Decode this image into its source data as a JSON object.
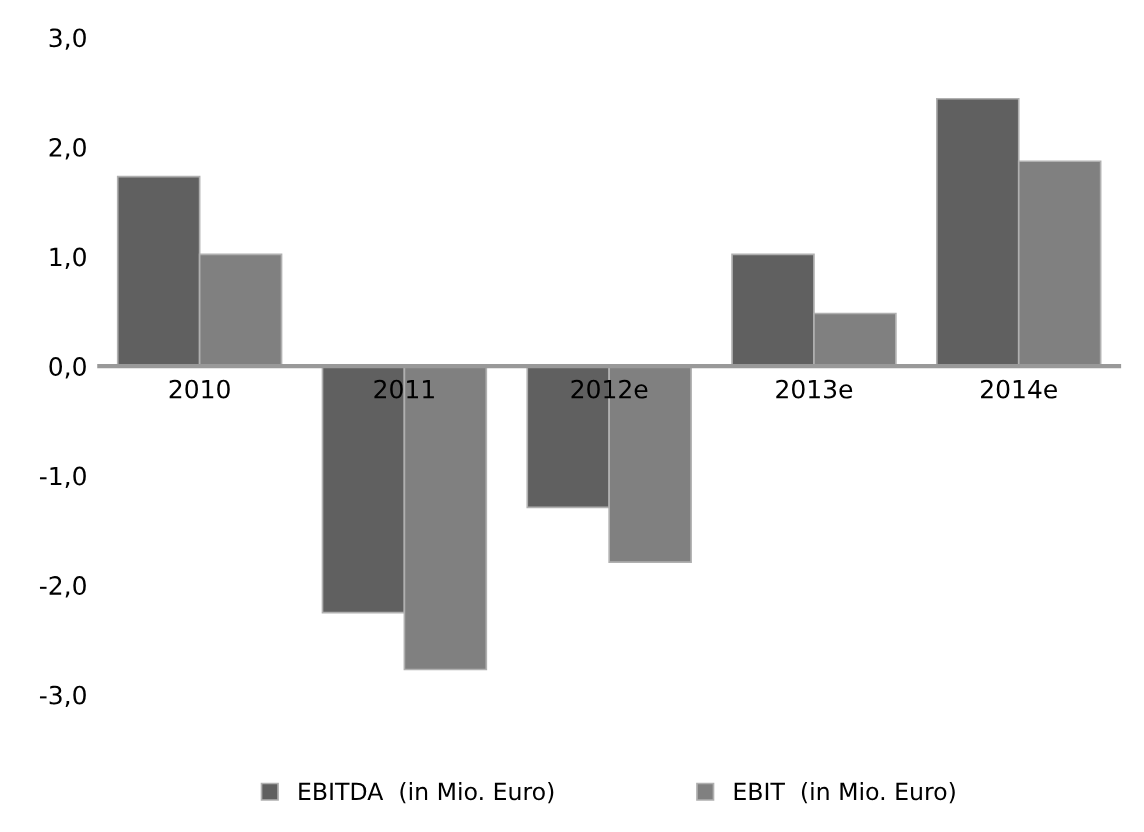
{
  "chart_data": {
    "type": "bar",
    "categories": [
      "2010",
      "2011",
      "2012e",
      "2013e",
      "2014e"
    ],
    "series": [
      {
        "name": "EBITDA  (in Mio. Euro)",
        "color": "#606060",
        "values": [
          1.73,
          -2.25,
          -1.29,
          1.02,
          2.44
        ]
      },
      {
        "name": "EBIT  (in Mio. Euro)",
        "color": "#808080",
        "values": [
          1.02,
          -2.77,
          -1.79,
          0.48,
          1.87
        ]
      }
    ],
    "ylim": [
      -3,
      3
    ],
    "yticks": [
      {
        "value": -3,
        "label": "-3,0"
      },
      {
        "value": -2,
        "label": "-2,0"
      },
      {
        "value": -1,
        "label": "-1,0"
      },
      {
        "value": 0,
        "label": "0,0"
      },
      {
        "value": 1,
        "label": "1,0"
      },
      {
        "value": 2,
        "label": "2,0"
      },
      {
        "value": 3,
        "label": "3,0"
      }
    ],
    "grid": false,
    "legend": "bottom"
  }
}
